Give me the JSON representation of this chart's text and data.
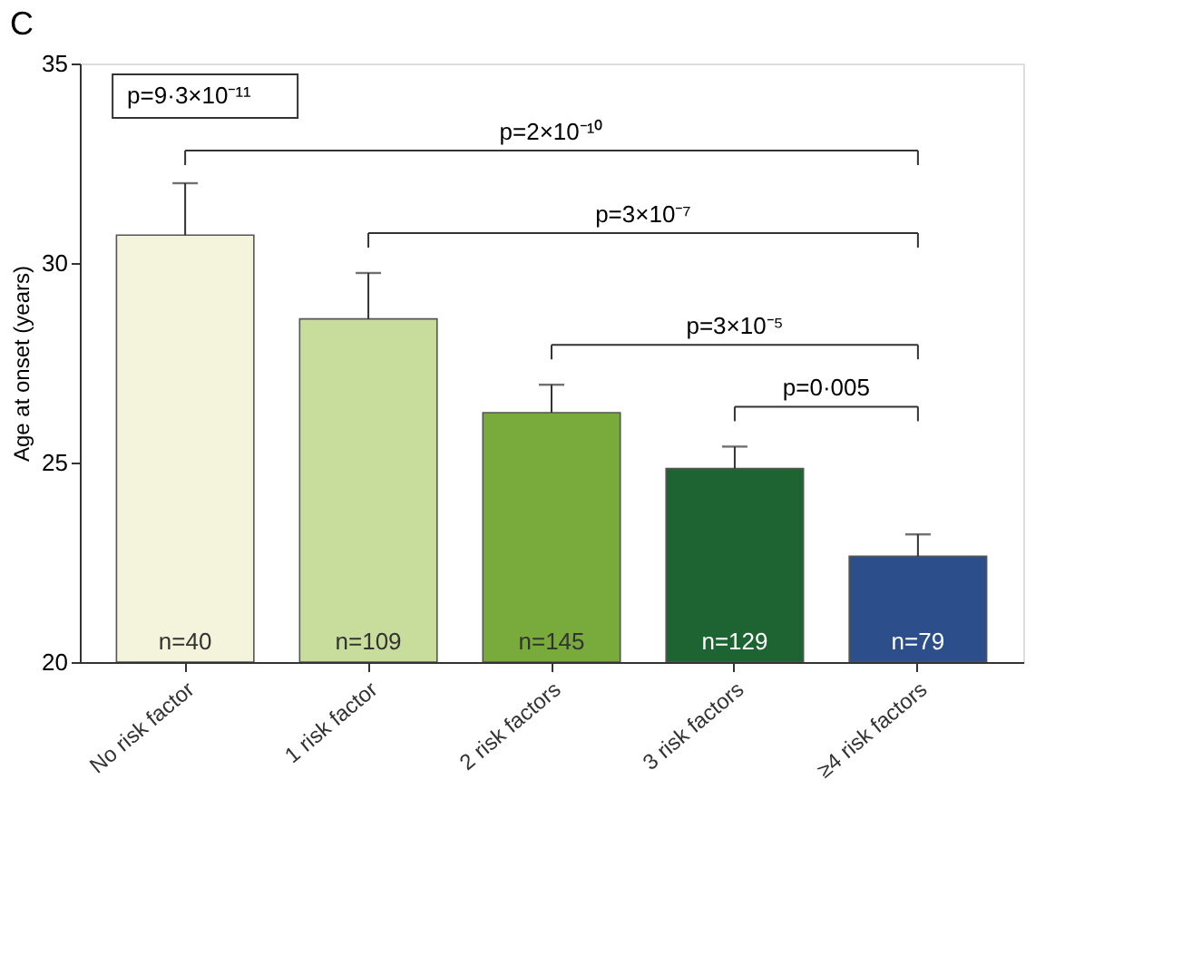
{
  "chart_data": {
    "type": "bar",
    "title": "C",
    "ylabel": "Age at onset (years)",
    "categories": [
      "No risk factor",
      "1 risk factor",
      "2 risk factors",
      "3 risk factors",
      "≥4 risk factors"
    ],
    "values": [
      30.7,
      28.6,
      26.25,
      24.85,
      22.65
    ],
    "colors": [
      "#f4f4dc",
      "#c8dc9c",
      "#78aa3c",
      "#1e6432",
      "#2c4f8c"
    ],
    "errors": [
      [
        30.7,
        32.0
      ],
      [
        28.6,
        29.75
      ],
      [
        26.25,
        26.95
      ],
      [
        24.85,
        25.4
      ],
      [
        22.65,
        23.2
      ]
    ],
    "ylim": [
      20,
      35
    ],
    "yticks": [
      20,
      25,
      30,
      35
    ],
    "grid": false,
    "annotations": [
      "p=9·3×10⁻¹¹",
      "p=2×10⁻¹⁰",
      "p=3×10⁻⁷",
      "p=3×10⁻⁵",
      "p=0·005",
      "n=40",
      "n=109",
      "n=145",
      "n=129",
      "n=79"
    ]
  }
}
